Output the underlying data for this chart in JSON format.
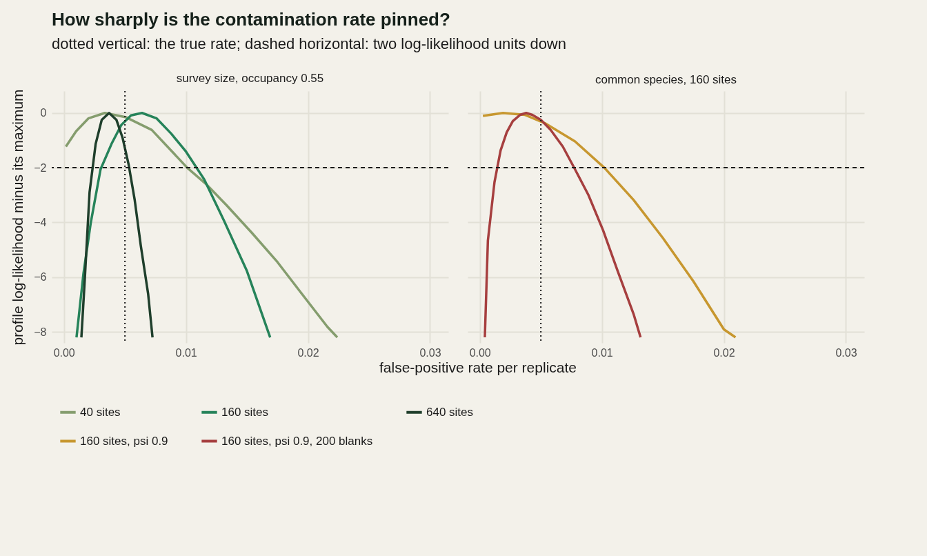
{
  "chart_data": [
    {
      "type": "other",
      "title": "How sharply is the contamination rate pinned?",
      "subtitle": "dotted vertical: the true rate; dashed horizontal: two log-likelihood units down"
    },
    {
      "type": "line",
      "title": "survey size, occupancy 0.55",
      "xlabel": "false-positive rate per replicate",
      "ylabel": "profile log-likelihood minus its maximum",
      "xlim": [
        -0.001,
        0.0315
      ],
      "ylim": [
        -8.4,
        0.8
      ],
      "xticks": [
        {
          "value": 0,
          "label": "0.00"
        },
        {
          "value": 0.01,
          "label": "0.01"
        },
        {
          "value": 0.02,
          "label": "0.02"
        },
        {
          "value": 0.03,
          "label": "0.03"
        }
      ],
      "yticks": [
        -8,
        -6,
        -4,
        -2,
        0
      ],
      "grid": true,
      "legend": "bottom",
      "ref_lines": [
        {
          "axis": "x",
          "value": 0.005,
          "line_style": "dotted",
          "color": "#1a1a1a"
        },
        {
          "axis": "y",
          "value": -2,
          "line_style": "dashed",
          "color": "#1a1a1a"
        }
      ],
      "series": [
        {
          "name": "40 sites",
          "color": "#859d6e",
          "x": [
            0.00016,
            0.001,
            0.002,
            0.00335,
            0.0051,
            0.0072,
            0.0101,
            0.0117,
            0.0133,
            0.0154,
            0.0175,
            0.0195,
            0.0216,
            0.0224
          ],
          "values": [
            -1.23,
            -0.67,
            -0.2,
            0,
            -0.16,
            -0.62,
            -2,
            -2.62,
            -3.36,
            -4.38,
            -5.45,
            -6.61,
            -7.82,
            -8.2
          ]
        },
        {
          "name": "160 sites",
          "color": "#26835a",
          "x": [
            0.00103,
            0.0016,
            0.0022,
            0.003,
            0.0039,
            0.0047,
            0.0055,
            0.0064,
            0.0076,
            0.0088,
            0.01,
            0.0115,
            0.0131,
            0.015,
            0.0169
          ],
          "values": [
            -8.2,
            -5.87,
            -4.01,
            -2.06,
            -1.13,
            -0.44,
            -0.09,
            0,
            -0.2,
            -0.76,
            -1.41,
            -2.43,
            -3.92,
            -5.78,
            -8.2
          ]
        },
        {
          "name": "640 sites",
          "color": "#1f3f2c",
          "x": [
            0.00143,
            0.0017,
            0.0021,
            0.0026,
            0.0031,
            0.0037,
            0.0043,
            0.0048,
            0.0053,
            0.0058,
            0.0063,
            0.0069,
            0.00726
          ],
          "values": [
            -8.2,
            -6.15,
            -2.9,
            -1.13,
            -0.25,
            0,
            -0.25,
            -0.9,
            -1.88,
            -3.18,
            -4.85,
            -6.61,
            -8.2
          ]
        }
      ]
    },
    {
      "type": "line",
      "title": "common species, 160 sites",
      "xlim": [
        -0.001,
        0.0315
      ],
      "ylim": [
        -8.4,
        0.8
      ],
      "xticks": [
        {
          "value": 0,
          "label": "0.00"
        },
        {
          "value": 0.01,
          "label": "0.01"
        },
        {
          "value": 0.02,
          "label": "0.02"
        },
        {
          "value": 0.03,
          "label": "0.03"
        }
      ],
      "yticks": [
        -8,
        -6,
        -4,
        -2,
        0
      ],
      "grid": true,
      "legend": "bottom",
      "tick_labels": "x",
      "ref_lines": [
        {
          "axis": "x",
          "value": 0.005,
          "line_style": "dotted",
          "color": "#1a1a1a"
        },
        {
          "axis": "y",
          "value": -2,
          "line_style": "dashed",
          "color": "#1a1a1a"
        }
      ],
      "series": [
        {
          "name": "160 sites, psi 0.9",
          "color": "#c7972f",
          "x": [
            0.00025,
            0.0019,
            0.0037,
            0.0054,
            0.0078,
            0.0102,
            0.0126,
            0.015,
            0.0175,
            0.02,
            0.02095
          ],
          "values": [
            -0.11,
            0,
            -0.07,
            -0.39,
            -1.04,
            -2,
            -3.18,
            -4.57,
            -6.15,
            -7.91,
            -8.2
          ]
        },
        {
          "name": "160 sites, psi 0.9, 200 blanks",
          "color": "#a63f3f",
          "x": [
            0.00041,
            0.00066,
            0.0012,
            0.0017,
            0.0022,
            0.0027,
            0.0033,
            0.0038,
            0.0043,
            0.005,
            0.0058,
            0.0068,
            0.0078,
            0.0089,
            0.0101,
            0.0113,
            0.0126,
            0.01317
          ],
          "values": [
            -8.2,
            -4.66,
            -2.53,
            -1.37,
            -0.71,
            -0.3,
            -0.07,
            0,
            -0.07,
            -0.25,
            -0.62,
            -1.23,
            -2.06,
            -3,
            -4.29,
            -5.78,
            -7.35,
            -8.2
          ]
        }
      ]
    }
  ]
}
